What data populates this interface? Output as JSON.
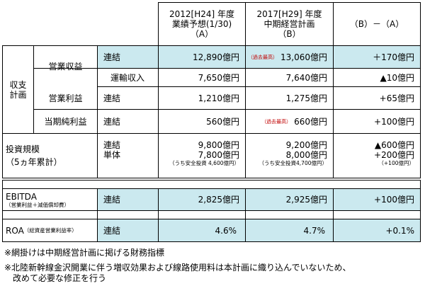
{
  "header": {
    "col_a_line1": "2012[H24] 年度",
    "col_a_line2": "業績予想(1/30)",
    "col_a_line3": "（A）",
    "col_b_line1": "2017[H29] 年度",
    "col_b_line2": "中期経営計画",
    "col_b_line3": "（B）",
    "col_diff": "（B）－（A）"
  },
  "sections": {
    "income_plan_line1": "収支",
    "income_plan_line2": "計画",
    "investment_line1": "投資規模",
    "investment_line2": "（5ヵ年累計）",
    "ebitda_title": "EBITDA",
    "ebitda_sub": "（営業利益＋減価償却費）",
    "roa_title": "ROA",
    "roa_sub": "（総資産営業利益率）"
  },
  "rows": {
    "operating_revenue": {
      "label": "営業収益",
      "type": "連結",
      "a": "12,890億円",
      "b_note": "（過去最高）",
      "b": "13,060億円",
      "diff": "＋170億円"
    },
    "transport_revenue": {
      "label": "運輸収入",
      "a": "7,650億円",
      "b": "7,640億円",
      "diff": "▲10億円"
    },
    "operating_income": {
      "label": "営業利益",
      "type": "連結",
      "a": "1,210億円",
      "b": "1,275億円",
      "diff": "+65億円"
    },
    "net_income": {
      "label": "当期純利益",
      "type": "連結",
      "a": "560億円",
      "b_note": "（過去最高）",
      "b": "660億円",
      "diff": "+100億円"
    },
    "investment": {
      "type1": "連結",
      "type2": "単体",
      "a1": "9,800億円",
      "a2": "7,800億円",
      "a_note": "（うち安全投資 4,600億円）",
      "b1": "9,200億円",
      "b2": "8,000億円",
      "b_note": "（うち安全投資4,700億円）",
      "diff1": "▲600億円",
      "diff2": "+200億円",
      "diff_note": "（+100億円）"
    },
    "ebitda": {
      "type": "連結",
      "a": "2,825億円",
      "b": "2,925億円",
      "diff": "+100億円"
    },
    "roa": {
      "type": "連結",
      "a": "4.6%",
      "b": "4.7%",
      "diff": "+0.1%"
    }
  },
  "footnotes": {
    "note1": "※網掛けは中期経営計画に掲げる財務指標",
    "note2_line1": "※北陸新幹線金沢開業に伴う増収効果および線路使用料は本計画に織り込んでいないため、",
    "note2_line2": "改めて必要な修正を行う"
  },
  "colors": {
    "highlight": "#cbe9ef"
  }
}
